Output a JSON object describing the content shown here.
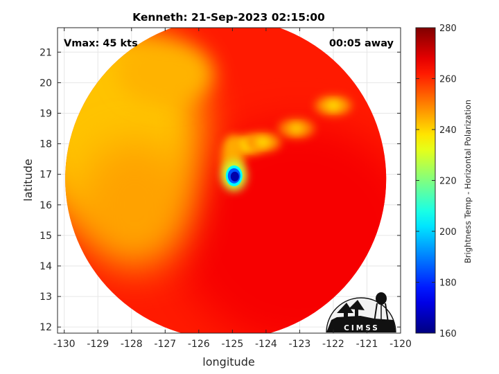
{
  "chart_data": {
    "type": "heatmap",
    "title": "Kenneth: 21-Sep-2023 02:15:00",
    "xlabel": "longitude",
    "ylabel": "latitude",
    "xlim": [
      -130.2,
      -120
    ],
    "ylim": [
      11.8,
      21.8
    ],
    "x_ticks": [
      -130,
      -129,
      -128,
      -127,
      -126,
      -125,
      -124,
      -123,
      -122,
      -121,
      -120
    ],
    "y_ticks": [
      12,
      13,
      14,
      15,
      16,
      17,
      18,
      19,
      20,
      21
    ],
    "grid": true,
    "colorbar": {
      "label": "Brightness Temp - Horizontal Polarization",
      "range": [
        160,
        280
      ],
      "ticks": [
        160,
        180,
        200,
        220,
        240,
        260,
        280
      ],
      "colormap": "jet"
    },
    "annotations": {
      "top_left": "Vmax: 45 kts",
      "top_right": "00:05 away"
    },
    "swath": {
      "center_lon": -125.2,
      "center_lat": 16.85,
      "radius_deg": 5.0
    },
    "features": [
      {
        "name": "eye-wall core",
        "lon": -124.95,
        "lat": 16.95,
        "min_tb": 165
      },
      {
        "name": "convective band north",
        "lon": -124.6,
        "lat": 17.95,
        "min_tb": 235
      },
      {
        "name": "convective band east",
        "lon": -124.1,
        "lat": 18.05,
        "min_tb": 238
      },
      {
        "name": "cell northeast",
        "lon": -123.1,
        "lat": 18.5,
        "min_tb": 240
      },
      {
        "name": "cell far northeast",
        "lon": -122.0,
        "lat": 19.25,
        "min_tb": 238
      },
      {
        "name": "dry air west",
        "lon": -128.5,
        "lat": 18.5,
        "min_tb": 242
      }
    ],
    "logo": {
      "text": "CIMSS"
    }
  }
}
